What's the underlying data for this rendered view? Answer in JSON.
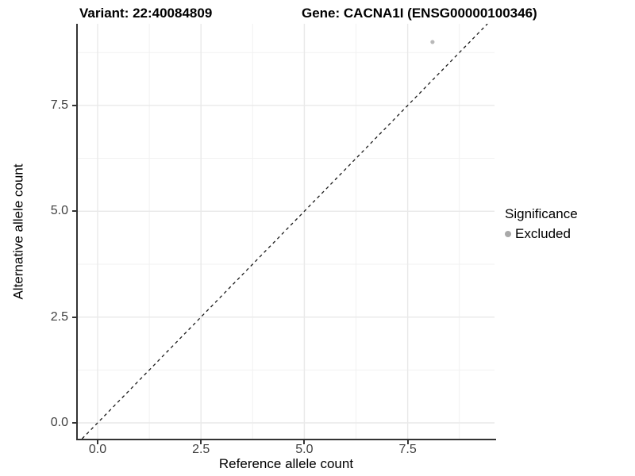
{
  "header": {
    "variant_title": "Variant: 22:40084809",
    "gene_title": "Gene: CACNA1I (ENSG00000100346)"
  },
  "chart_data": {
    "type": "scatter",
    "xlabel": "Reference allele count",
    "ylabel": "Alternative allele count",
    "xlim": [
      -0.48,
      9.6
    ],
    "ylim": [
      -0.375,
      9.43
    ],
    "x_major_ticks": [
      0,
      2.5,
      5,
      7.5
    ],
    "x_tick_labels": [
      "0.0",
      "2.5",
      "5.0",
      "7.5"
    ],
    "y_major_ticks": [
      0,
      2.5,
      5,
      7.5
    ],
    "y_tick_labels": [
      "0.0",
      "2.5",
      "5.0",
      "7.5"
    ],
    "x_minor_gridlines": [
      1.25,
      3.75,
      6.25,
      8.75
    ],
    "y_minor_gridlines": [
      1.25,
      3.75,
      6.25,
      8.75
    ],
    "grid": true,
    "points": [
      {
        "x": 8.1,
        "y": 9.0,
        "significance": "Excluded"
      }
    ],
    "reference_line": {
      "slope": 1,
      "intercept": 0,
      "style": "dashed",
      "color": "#1a1a1a"
    },
    "legend": {
      "title": "Significance",
      "position": "right",
      "items": [
        {
          "label": "Excluded",
          "color": "#a9a9a9"
        }
      ]
    },
    "colors": {
      "point": "#b8b8b8",
      "gridline_major": "#e9e9e9",
      "gridline_minor": "#f1f1f1",
      "axis_line": "#333333",
      "tick_label": "#404040"
    }
  }
}
